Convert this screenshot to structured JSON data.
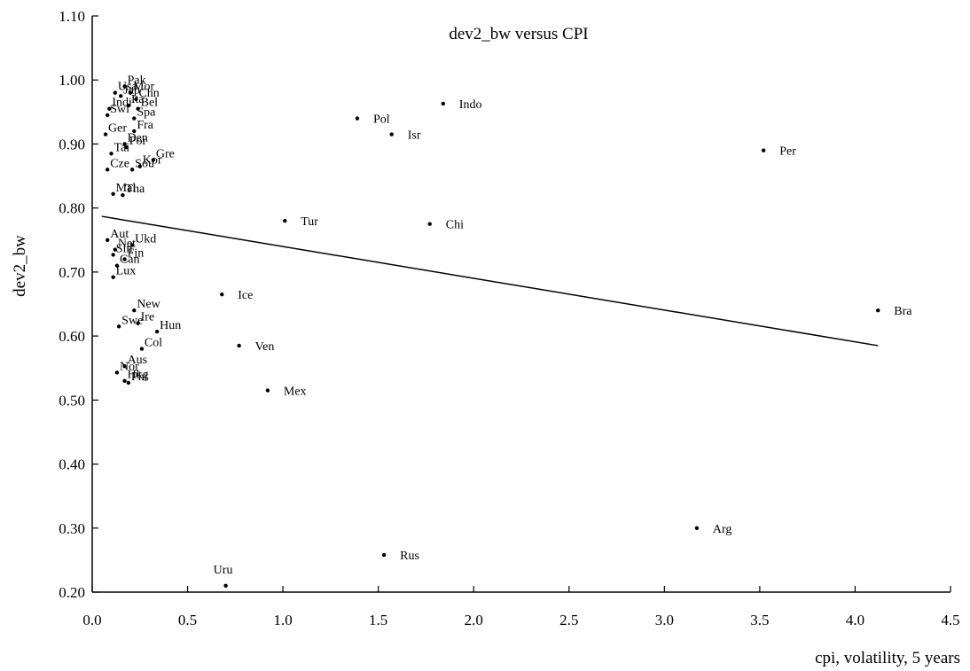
{
  "chart_data": {
    "type": "scatter",
    "title": "dev2_bw versus CPI",
    "xlabel": "cpi, volatility, 5 years",
    "ylabel": "dev2_bw",
    "xlim": [
      0,
      4.5
    ],
    "ylim": [
      0.2,
      1.1
    ],
    "xticks": [
      "0.0",
      "0.5",
      "1.0",
      "1.5",
      "2.0",
      "2.5",
      "3.0",
      "3.5",
      "4.0",
      "4.5"
    ],
    "yticks": [
      "0.20",
      "0.30",
      "0.40",
      "0.50",
      "0.60",
      "0.70",
      "0.80",
      "0.90",
      "1.00",
      "1.10"
    ],
    "grid": false,
    "points": [
      {
        "label": "Usa",
        "x": 0.12,
        "y": 0.98
      },
      {
        "label": "Pak",
        "x": 0.17,
        "y": 0.99
      },
      {
        "label": "Mor",
        "x": 0.2,
        "y": 0.98
      },
      {
        "label": "Jap",
        "x": 0.15,
        "y": 0.975
      },
      {
        "label": "Chn",
        "x": 0.23,
        "y": 0.97
      },
      {
        "label": "Indi",
        "x": 0.09,
        "y": 0.955
      },
      {
        "label": "Ita",
        "x": 0.19,
        "y": 0.96
      },
      {
        "label": "Bel",
        "x": 0.24,
        "y": 0.955
      },
      {
        "label": "Swi",
        "x": 0.08,
        "y": 0.945
      },
      {
        "label": "Spa",
        "x": 0.22,
        "y": 0.94
      },
      {
        "label": "Ger",
        "x": 0.07,
        "y": 0.915
      },
      {
        "label": "Fra",
        "x": 0.22,
        "y": 0.92
      },
      {
        "label": "Den",
        "x": 0.17,
        "y": 0.9
      },
      {
        "label": "Por",
        "x": 0.18,
        "y": 0.895
      },
      {
        "label": "Tai",
        "x": 0.1,
        "y": 0.885
      },
      {
        "label": "Gre",
        "x": 0.32,
        "y": 0.875
      },
      {
        "label": "Kor",
        "x": 0.25,
        "y": 0.865
      },
      {
        "label": "Cze",
        "x": 0.08,
        "y": 0.86
      },
      {
        "label": "Sou",
        "x": 0.21,
        "y": 0.86
      },
      {
        "label": "Tha",
        "x": 0.16,
        "y": 0.82
      },
      {
        "label": "Mal",
        "x": 0.11,
        "y": 0.822
      },
      {
        "label": "Aut",
        "x": 0.08,
        "y": 0.75
      },
      {
        "label": "Net",
        "x": 0.12,
        "y": 0.735
      },
      {
        "label": "Ukd",
        "x": 0.21,
        "y": 0.742
      },
      {
        "label": "Sin",
        "x": 0.11,
        "y": 0.727
      },
      {
        "label": "Fin",
        "x": 0.17,
        "y": 0.72
      },
      {
        "label": "Can",
        "x": 0.13,
        "y": 0.71
      },
      {
        "label": "Lux",
        "x": 0.11,
        "y": 0.692
      },
      {
        "label": "New",
        "x": 0.22,
        "y": 0.64
      },
      {
        "label": "Ire",
        "x": 0.24,
        "y": 0.62
      },
      {
        "label": "Swe",
        "x": 0.14,
        "y": 0.615
      },
      {
        "label": "Hun",
        "x": 0.34,
        "y": 0.607
      },
      {
        "label": "Col",
        "x": 0.26,
        "y": 0.58
      },
      {
        "label": "Aus",
        "x": 0.17,
        "y": 0.553
      },
      {
        "label": "Nor",
        "x": 0.13,
        "y": 0.543
      },
      {
        "label": "Phi",
        "x": 0.19,
        "y": 0.527
      },
      {
        "label": "Hkg",
        "x": 0.17,
        "y": 0.53
      },
      {
        "label": "Indo",
        "x": 1.84,
        "y": 0.963
      },
      {
        "label": "Pol",
        "x": 1.39,
        "y": 0.94
      },
      {
        "label": "Isr",
        "x": 1.57,
        "y": 0.915
      },
      {
        "label": "Per",
        "x": 3.52,
        "y": 0.89
      },
      {
        "label": "Tur",
        "x": 1.01,
        "y": 0.78
      },
      {
        "label": "Chi",
        "x": 1.77,
        "y": 0.775
      },
      {
        "label": "Ice",
        "x": 0.68,
        "y": 0.665
      },
      {
        "label": "Bra",
        "x": 4.12,
        "y": 0.64
      },
      {
        "label": "Ven",
        "x": 0.77,
        "y": 0.585
      },
      {
        "label": "Mex",
        "x": 0.92,
        "y": 0.515
      },
      {
        "label": "Arg",
        "x": 3.17,
        "y": 0.3
      },
      {
        "label": "Rus",
        "x": 1.53,
        "y": 0.258
      },
      {
        "label": "Uru",
        "x": 0.7,
        "y": 0.21
      }
    ],
    "regression_line": {
      "x": [
        0.05,
        4.12
      ],
      "y": [
        0.787,
        0.585
      ]
    }
  }
}
